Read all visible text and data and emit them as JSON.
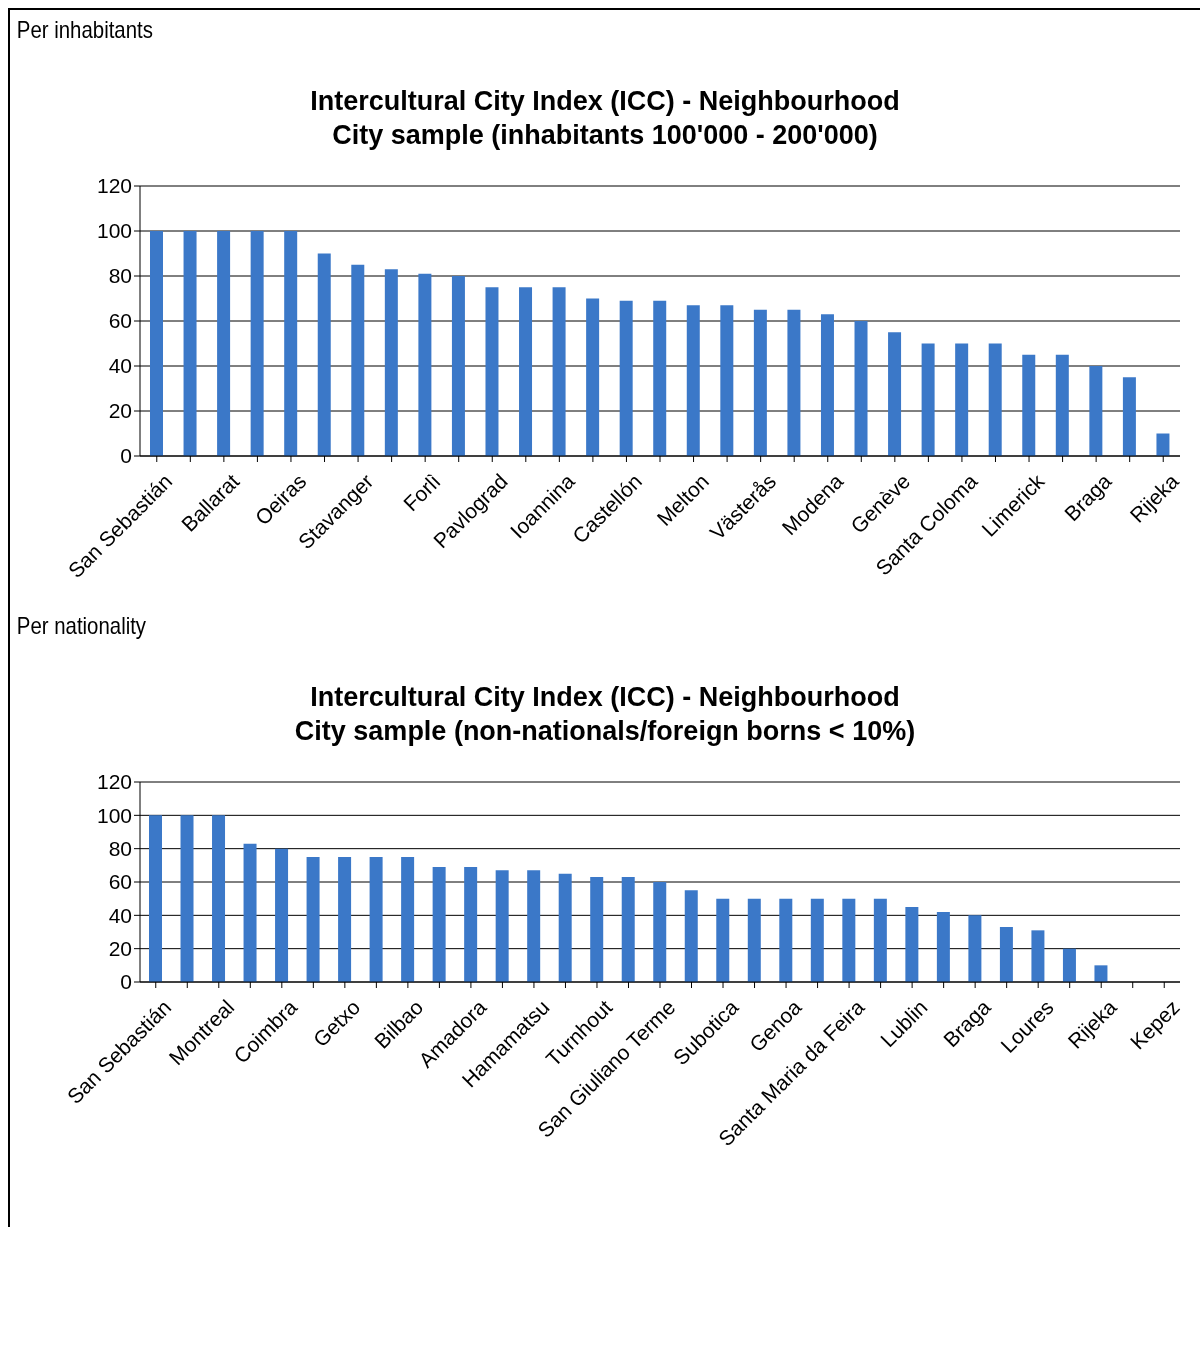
{
  "chart_data": [
    {
      "type": "bar",
      "title": "Intercultural City Index (ICC) - Neighbourhood\nCity sample (inhabitants 100'000 - 200'000)",
      "annotations": [
        "Per inhabitants"
      ],
      "categories": [
        "San Sebastián",
        null,
        "Ballarat",
        null,
        "Oeiras",
        null,
        "Stavanger",
        null,
        "Forlì",
        null,
        "Pavlograd",
        null,
        "Ioannina",
        null,
        "Castellón",
        null,
        "Melton",
        null,
        "Västerås",
        null,
        "Modena",
        null,
        "Genève",
        null,
        "Santa Coloma",
        null,
        "Limerick",
        null,
        "Braga",
        null,
        "Rijeka"
      ],
      "values": [
        100,
        100,
        100,
        100,
        100,
        90,
        85,
        83,
        81,
        80,
        75,
        75,
        75,
        70,
        69,
        69,
        67,
        67,
        65,
        65,
        63,
        60,
        55,
        50,
        50,
        50,
        45,
        45,
        40,
        35,
        10
      ],
      "color": "#3b78c8",
      "ylim": [
        0,
        120
      ],
      "yticks": [
        0,
        20,
        40,
        60,
        80,
        100,
        120
      ],
      "grid": "y",
      "legend": false
    },
    {
      "type": "bar",
      "title": "Intercultural City Index (ICC) - Neighbourhood\nCity sample (non-nationals/foreign borns < 10%)",
      "annotations": [
        "Per nationality"
      ],
      "categories": [
        "San Sebastián",
        null,
        "Montreal",
        null,
        "Coimbra",
        null,
        "Getxo",
        null,
        "Bilbao",
        null,
        "Amadora",
        null,
        "Hamamatsu",
        null,
        "Turnhout",
        null,
        "San Giuliano Terme",
        null,
        "Subotica",
        null,
        "Genoa",
        null,
        "Santa Maria da Feira",
        null,
        "Lublin",
        null,
        "Braga",
        null,
        "Loures",
        null,
        "Rijeka",
        null,
        "Kepez"
      ],
      "values": [
        100,
        100,
        100,
        83,
        80,
        75,
        75,
        75,
        75,
        69,
        69,
        67,
        67,
        65,
        63,
        63,
        60,
        55,
        50,
        50,
        50,
        50,
        50,
        50,
        45,
        42,
        40,
        33,
        31,
        20,
        10,
        0,
        0
      ],
      "color": "#3b78c8",
      "ylim": [
        0,
        120
      ],
      "yticks": [
        0,
        20,
        40,
        60,
        80,
        100,
        120
      ],
      "grid": "y",
      "legend": false
    }
  ]
}
